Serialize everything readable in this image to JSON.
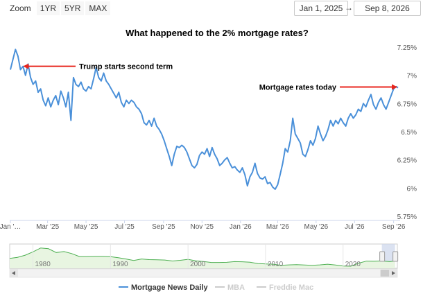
{
  "toolbar": {
    "zoom_label": "Zoom",
    "buttons": [
      "1YR",
      "5YR",
      "MAX"
    ],
    "range_from": "Jan 1, 2025",
    "range_arrow": "→",
    "range_to": "Sep 8, 2026"
  },
  "chart_data": {
    "type": "line",
    "title": "What happened to the 2% mortgage rates?",
    "xlabel": "",
    "ylabel": "",
    "ylim": [
      5.75,
      7.25
    ],
    "y_ticks": [
      "7.25%",
      "7%",
      "6.75%",
      "6.5%",
      "6.25%",
      "6%",
      "5.75%"
    ],
    "y_tick_values": [
      7.25,
      7.0,
      6.75,
      6.5,
      6.25,
      6.0,
      5.75
    ],
    "x_ticks": [
      "Jan '…",
      "Mar '25",
      "May '25",
      "Jul '25",
      "Sep '25",
      "Nov '25",
      "Jan '26",
      "Mar '26",
      "May '26",
      "Jul '26",
      "Sep '26"
    ],
    "x_tick_dates": [
      "2025-01-01",
      "2025-03-01",
      "2025-05-01",
      "2025-07-01",
      "2025-09-01",
      "2025-11-01",
      "2026-01-01",
      "2026-03-01",
      "2026-05-01",
      "2026-07-01",
      "2026-09-01"
    ],
    "xlim": [
      "2025-01-01",
      "2026-09-08"
    ],
    "grid": false,
    "legend_placement": "bottom-center",
    "series": [
      {
        "name": "Mortgage News Daily",
        "color": "#4a90d9",
        "visible": true,
        "points": [
          [
            "2025-01-01",
            7.05
          ],
          [
            "2025-01-05",
            7.14
          ],
          [
            "2025-01-09",
            7.23
          ],
          [
            "2025-01-13",
            7.17
          ],
          [
            "2025-01-17",
            7.05
          ],
          [
            "2025-01-21",
            7.08
          ],
          [
            "2025-01-25",
            7.0
          ],
          [
            "2025-01-29",
            7.1
          ],
          [
            "2025-02-02",
            6.98
          ],
          [
            "2025-02-06",
            6.92
          ],
          [
            "2025-02-10",
            6.95
          ],
          [
            "2025-02-14",
            6.85
          ],
          [
            "2025-02-18",
            6.88
          ],
          [
            "2025-02-22",
            6.78
          ],
          [
            "2025-02-26",
            6.73
          ],
          [
            "2025-03-02",
            6.8
          ],
          [
            "2025-03-06",
            6.72
          ],
          [
            "2025-03-10",
            6.78
          ],
          [
            "2025-03-14",
            6.82
          ],
          [
            "2025-03-18",
            6.74
          ],
          [
            "2025-03-22",
            6.86
          ],
          [
            "2025-03-26",
            6.8
          ],
          [
            "2025-03-30",
            6.72
          ],
          [
            "2025-04-03",
            6.85
          ],
          [
            "2025-04-07",
            6.6
          ],
          [
            "2025-04-11",
            6.98
          ],
          [
            "2025-04-15",
            6.92
          ],
          [
            "2025-04-19",
            6.9
          ],
          [
            "2025-04-23",
            6.94
          ],
          [
            "2025-04-27",
            6.88
          ],
          [
            "2025-05-01",
            6.86
          ],
          [
            "2025-05-05",
            6.9
          ],
          [
            "2025-05-09",
            6.88
          ],
          [
            "2025-05-13",
            6.97
          ],
          [
            "2025-05-17",
            7.07
          ],
          [
            "2025-05-21",
            6.98
          ],
          [
            "2025-05-25",
            6.95
          ],
          [
            "2025-05-29",
            7.02
          ],
          [
            "2025-06-02",
            6.95
          ],
          [
            "2025-06-06",
            6.92
          ],
          [
            "2025-06-10",
            6.88
          ],
          [
            "2025-06-14",
            6.84
          ],
          [
            "2025-06-18",
            6.8
          ],
          [
            "2025-06-22",
            6.85
          ],
          [
            "2025-06-26",
            6.76
          ],
          [
            "2025-06-30",
            6.72
          ],
          [
            "2025-07-04",
            6.78
          ],
          [
            "2025-07-08",
            6.75
          ],
          [
            "2025-07-12",
            6.78
          ],
          [
            "2025-07-16",
            6.76
          ],
          [
            "2025-07-20",
            6.72
          ],
          [
            "2025-07-24",
            6.7
          ],
          [
            "2025-07-28",
            6.66
          ],
          [
            "2025-08-01",
            6.58
          ],
          [
            "2025-08-05",
            6.56
          ],
          [
            "2025-08-09",
            6.6
          ],
          [
            "2025-08-13",
            6.55
          ],
          [
            "2025-08-17",
            6.62
          ],
          [
            "2025-08-21",
            6.55
          ],
          [
            "2025-08-25",
            6.52
          ],
          [
            "2025-08-29",
            6.48
          ],
          [
            "2025-09-02",
            6.42
          ],
          [
            "2025-09-06",
            6.35
          ],
          [
            "2025-09-10",
            6.28
          ],
          [
            "2025-09-14",
            6.2
          ],
          [
            "2025-09-18",
            6.3
          ],
          [
            "2025-09-22",
            6.37
          ],
          [
            "2025-09-26",
            6.36
          ],
          [
            "2025-09-30",
            6.38
          ],
          [
            "2025-10-04",
            6.36
          ],
          [
            "2025-10-08",
            6.32
          ],
          [
            "2025-10-12",
            6.26
          ],
          [
            "2025-10-16",
            6.2
          ],
          [
            "2025-10-20",
            6.18
          ],
          [
            "2025-10-24",
            6.21
          ],
          [
            "2025-10-28",
            6.29
          ],
          [
            "2025-11-01",
            6.32
          ],
          [
            "2025-11-05",
            6.3
          ],
          [
            "2025-11-09",
            6.35
          ],
          [
            "2025-11-13",
            6.28
          ],
          [
            "2025-11-17",
            6.36
          ],
          [
            "2025-11-21",
            6.3
          ],
          [
            "2025-11-25",
            6.26
          ],
          [
            "2025-11-29",
            6.2
          ],
          [
            "2025-12-03",
            6.22
          ],
          [
            "2025-12-07",
            6.25
          ],
          [
            "2025-12-11",
            6.27
          ],
          [
            "2025-12-15",
            6.22
          ],
          [
            "2025-12-19",
            6.18
          ],
          [
            "2025-12-23",
            6.19
          ],
          [
            "2025-12-27",
            6.16
          ],
          [
            "2025-12-31",
            6.14
          ],
          [
            "2026-01-04",
            6.18
          ],
          [
            "2026-01-08",
            6.12
          ],
          [
            "2026-01-12",
            6.02
          ],
          [
            "2026-01-16",
            6.1
          ],
          [
            "2026-01-20",
            6.14
          ],
          [
            "2026-01-24",
            6.22
          ],
          [
            "2026-01-28",
            6.13
          ],
          [
            "2026-02-01",
            6.09
          ],
          [
            "2026-02-05",
            6.08
          ],
          [
            "2026-02-09",
            6.1
          ],
          [
            "2026-02-13",
            6.04
          ],
          [
            "2026-02-17",
            6.05
          ],
          [
            "2026-02-21",
            6.01
          ],
          [
            "2026-02-25",
            5.99
          ],
          [
            "2026-03-01",
            6.03
          ],
          [
            "2026-03-05",
            6.12
          ],
          [
            "2026-03-09",
            6.22
          ],
          [
            "2026-03-13",
            6.35
          ],
          [
            "2026-03-17",
            6.32
          ],
          [
            "2026-03-21",
            6.42
          ],
          [
            "2026-03-25",
            6.62
          ],
          [
            "2026-03-29",
            6.48
          ],
          [
            "2026-04-02",
            6.44
          ],
          [
            "2026-04-06",
            6.4
          ],
          [
            "2026-04-10",
            6.3
          ],
          [
            "2026-04-14",
            6.28
          ],
          [
            "2026-04-18",
            6.34
          ],
          [
            "2026-04-22",
            6.42
          ],
          [
            "2026-04-26",
            6.38
          ],
          [
            "2026-04-30",
            6.44
          ],
          [
            "2026-05-04",
            6.55
          ],
          [
            "2026-05-08",
            6.48
          ],
          [
            "2026-05-12",
            6.42
          ],
          [
            "2026-05-16",
            6.46
          ],
          [
            "2026-05-20",
            6.52
          ],
          [
            "2026-05-24",
            6.6
          ],
          [
            "2026-05-28",
            6.55
          ],
          [
            "2026-06-01",
            6.6
          ],
          [
            "2026-06-05",
            6.57
          ],
          [
            "2026-06-09",
            6.62
          ],
          [
            "2026-06-13",
            6.58
          ],
          [
            "2026-06-17",
            6.55
          ],
          [
            "2026-06-21",
            6.62
          ],
          [
            "2026-06-25",
            6.66
          ],
          [
            "2026-06-29",
            6.62
          ],
          [
            "2026-07-03",
            6.65
          ],
          [
            "2026-07-07",
            6.7
          ],
          [
            "2026-07-11",
            6.68
          ],
          [
            "2026-07-15",
            6.75
          ],
          [
            "2026-07-19",
            6.72
          ],
          [
            "2026-07-23",
            6.78
          ],
          [
            "2026-07-27",
            6.83
          ],
          [
            "2026-07-31",
            6.74
          ],
          [
            "2026-08-04",
            6.7
          ],
          [
            "2026-08-08",
            6.76
          ],
          [
            "2026-08-12",
            6.8
          ],
          [
            "2026-08-16",
            6.74
          ],
          [
            "2026-08-20",
            6.7
          ],
          [
            "2026-08-24",
            6.76
          ],
          [
            "2026-08-28",
            6.82
          ],
          [
            "2026-09-01",
            6.88
          ],
          [
            "2026-09-05",
            6.9
          ],
          [
            "2026-09-08",
            6.89
          ]
        ]
      },
      {
        "name": "MBA",
        "color": "#cccccc",
        "visible": false,
        "points": []
      },
      {
        "name": "Freddie Mac",
        "color": "#cccccc",
        "visible": false,
        "points": []
      }
    ],
    "annotations": [
      {
        "text": "Trump starts second term",
        "date": "2025-01-20",
        "value": 7.08,
        "color": "#e8251c"
      },
      {
        "text": "Mortgage rates today",
        "date": "2026-09-08",
        "value": 6.89,
        "color": "#e8251c"
      }
    ],
    "navigator": {
      "x_ticks": [
        "1980",
        "1990",
        "2000",
        "2010",
        "2020"
      ],
      "x_tick_values": [
        1980,
        1990,
        2000,
        2010,
        2020
      ],
      "range": [
        1977.0,
        2027.0
      ],
      "selected": [
        2025.0,
        2026.7
      ],
      "color": "#4caf50",
      "points": [
        [
          1977.0,
          8.8
        ],
        [
          1978.0,
          9.6
        ],
        [
          1979.0,
          11.2
        ],
        [
          1980.0,
          13.7
        ],
        [
          1981.0,
          16.6
        ],
        [
          1982.0,
          16.0
        ],
        [
          1983.0,
          13.2
        ],
        [
          1984.0,
          13.9
        ],
        [
          1985.0,
          12.4
        ],
        [
          1986.0,
          10.2
        ],
        [
          1987.0,
          10.2
        ],
        [
          1988.0,
          10.3
        ],
        [
          1989.0,
          10.3
        ],
        [
          1990.0,
          10.1
        ],
        [
          1991.0,
          9.3
        ],
        [
          1992.0,
          8.4
        ],
        [
          1993.0,
          7.3
        ],
        [
          1994.0,
          8.4
        ],
        [
          1995.0,
          7.9
        ],
        [
          1996.0,
          7.8
        ],
        [
          1997.0,
          7.6
        ],
        [
          1998.0,
          6.9
        ],
        [
          1999.0,
          7.4
        ],
        [
          2000.0,
          8.1
        ],
        [
          2001.0,
          7.0
        ],
        [
          2002.0,
          6.5
        ],
        [
          2003.0,
          5.8
        ],
        [
          2004.0,
          5.8
        ],
        [
          2005.0,
          5.9
        ],
        [
          2006.0,
          6.4
        ],
        [
          2007.0,
          6.3
        ],
        [
          2008.0,
          6.0
        ],
        [
          2009.0,
          5.0
        ],
        [
          2010.0,
          4.7
        ],
        [
          2011.0,
          4.5
        ],
        [
          2012.0,
          3.7
        ],
        [
          2013.0,
          4.0
        ],
        [
          2014.0,
          4.2
        ],
        [
          2015.0,
          3.9
        ],
        [
          2016.0,
          3.7
        ],
        [
          2017.0,
          4.0
        ],
        [
          2018.0,
          4.5
        ],
        [
          2019.0,
          3.9
        ],
        [
          2020.0,
          3.1
        ],
        [
          2021.0,
          3.0
        ],
        [
          2022.0,
          5.3
        ],
        [
          2023.0,
          6.8
        ],
        [
          2024.0,
          6.7
        ],
        [
          2025.0,
          6.9
        ],
        [
          2026.0,
          6.4
        ],
        [
          2026.7,
          6.9
        ]
      ],
      "ylim": [
        2.5,
        18.5
      ]
    }
  }
}
